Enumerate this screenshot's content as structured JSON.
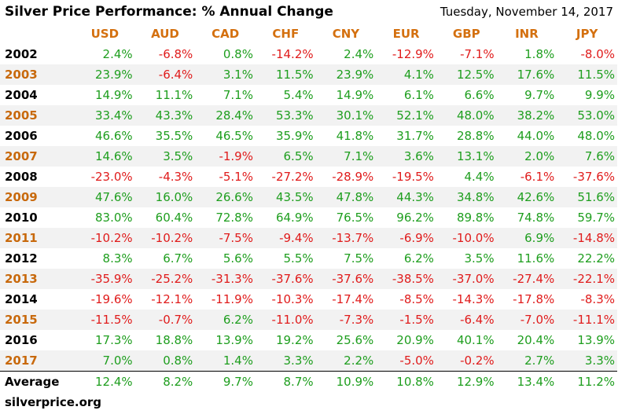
{
  "header": {
    "title": "Silver Price Performance: % Annual Change",
    "date": "Tuesday, November 14, 2017"
  },
  "colors": {
    "positive": "#1e9e1e",
    "negative": "#e01b1b",
    "header_text": "#d4700f",
    "odd_year": "#c8690c",
    "stripe": "#f2f2f2"
  },
  "table": {
    "columns": [
      "USD",
      "AUD",
      "CAD",
      "CHF",
      "CNY",
      "EUR",
      "GBP",
      "INR",
      "JPY"
    ],
    "rows": [
      {
        "year": "2002",
        "values": [
          "2.4%",
          "-6.8%",
          "0.8%",
          "-14.2%",
          "2.4%",
          "-12.9%",
          "-7.1%",
          "1.8%",
          "-8.0%"
        ]
      },
      {
        "year": "2003",
        "values": [
          "23.9%",
          "-6.4%",
          "3.1%",
          "11.5%",
          "23.9%",
          "4.1%",
          "12.5%",
          "17.6%",
          "11.5%"
        ]
      },
      {
        "year": "2004",
        "values": [
          "14.9%",
          "11.1%",
          "7.1%",
          "5.4%",
          "14.9%",
          "6.1%",
          "6.6%",
          "9.7%",
          "9.9%"
        ]
      },
      {
        "year": "2005",
        "values": [
          "33.4%",
          "43.3%",
          "28.4%",
          "53.3%",
          "30.1%",
          "52.1%",
          "48.0%",
          "38.2%",
          "53.0%"
        ]
      },
      {
        "year": "2006",
        "values": [
          "46.6%",
          "35.5%",
          "46.5%",
          "35.9%",
          "41.8%",
          "31.7%",
          "28.8%",
          "44.0%",
          "48.0%"
        ]
      },
      {
        "year": "2007",
        "values": [
          "14.6%",
          "3.5%",
          "-1.9%",
          "6.5%",
          "7.1%",
          "3.6%",
          "13.1%",
          "2.0%",
          "7.6%"
        ]
      },
      {
        "year": "2008",
        "values": [
          "-23.0%",
          "-4.3%",
          "-5.1%",
          "-27.2%",
          "-28.9%",
          "-19.5%",
          "4.4%",
          "-6.1%",
          "-37.6%"
        ]
      },
      {
        "year": "2009",
        "values": [
          "47.6%",
          "16.0%",
          "26.6%",
          "43.5%",
          "47.8%",
          "44.3%",
          "34.8%",
          "42.6%",
          "51.6%"
        ]
      },
      {
        "year": "2010",
        "values": [
          "83.0%",
          "60.4%",
          "72.8%",
          "64.9%",
          "76.5%",
          "96.2%",
          "89.8%",
          "74.8%",
          "59.7%"
        ]
      },
      {
        "year": "2011",
        "values": [
          "-10.2%",
          "-10.2%",
          "-7.5%",
          "-9.4%",
          "-13.7%",
          "-6.9%",
          "-10.0%",
          "6.9%",
          "-14.8%"
        ]
      },
      {
        "year": "2012",
        "values": [
          "8.3%",
          "6.7%",
          "5.6%",
          "5.5%",
          "7.5%",
          "6.2%",
          "3.5%",
          "11.6%",
          "22.2%"
        ]
      },
      {
        "year": "2013",
        "values": [
          "-35.9%",
          "-25.2%",
          "-31.3%",
          "-37.6%",
          "-37.6%",
          "-38.5%",
          "-37.0%",
          "-27.4%",
          "-22.1%"
        ]
      },
      {
        "year": "2014",
        "values": [
          "-19.6%",
          "-12.1%",
          "-11.9%",
          "-10.3%",
          "-17.4%",
          "-8.5%",
          "-14.3%",
          "-17.8%",
          "-8.3%"
        ]
      },
      {
        "year": "2015",
        "values": [
          "-11.5%",
          "-0.7%",
          "6.2%",
          "-11.0%",
          "-7.3%",
          "-1.5%",
          "-6.4%",
          "-7.0%",
          "-11.1%"
        ]
      },
      {
        "year": "2016",
        "values": [
          "17.3%",
          "18.8%",
          "13.9%",
          "19.2%",
          "25.6%",
          "20.9%",
          "40.1%",
          "20.4%",
          "13.9%"
        ]
      },
      {
        "year": "2017",
        "values": [
          "7.0%",
          "0.8%",
          "1.4%",
          "3.3%",
          "2.2%",
          "-5.0%",
          "-0.2%",
          "2.7%",
          "3.3%"
        ]
      }
    ],
    "average": {
      "label": "Average",
      "values": [
        "12.4%",
        "8.2%",
        "9.7%",
        "8.7%",
        "10.9%",
        "10.8%",
        "12.9%",
        "13.4%",
        "11.2%"
      ]
    }
  },
  "footer": {
    "source": "silverprice.org"
  }
}
